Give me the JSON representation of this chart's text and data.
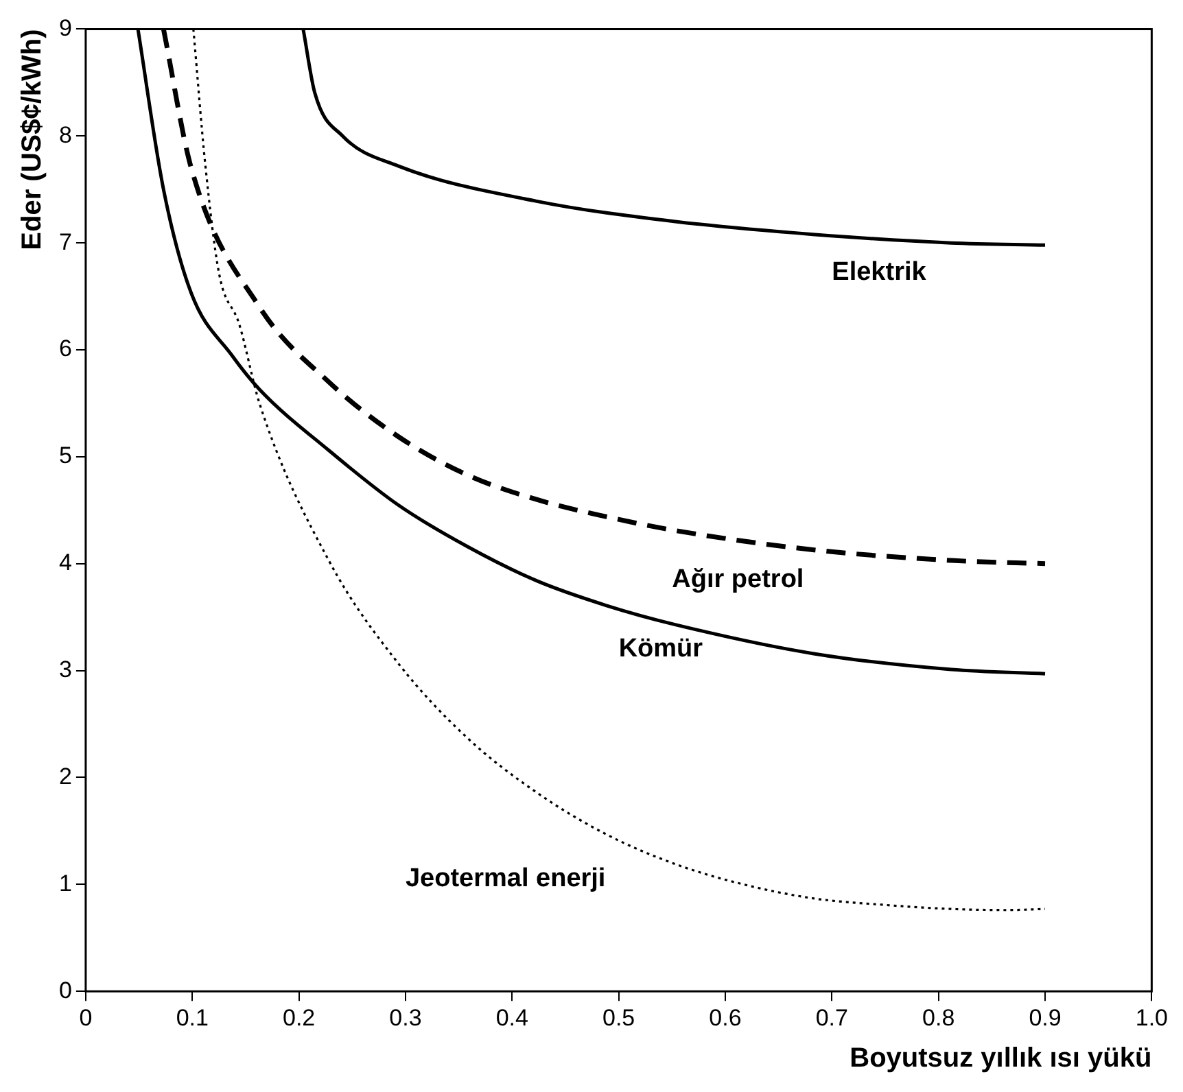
{
  "chart_data": {
    "type": "line",
    "xlabel": "Boyutsuz yıllık ısı yükü",
    "ylabel": "Eder (US$¢/kWh)",
    "xlim": [
      0,
      1
    ],
    "xticks": [
      0,
      0.1,
      0.2,
      0.3,
      0.4,
      0.5,
      0.6,
      0.7,
      0.8,
      0.9,
      {
        "value": 1,
        "label": "1.0"
      }
    ],
    "ylim": [
      0,
      9
    ],
    "yticks": [
      0,
      1,
      2,
      3,
      4,
      5,
      6,
      7,
      8,
      9
    ],
    "grid": false,
    "legend": false,
    "marker": "none",
    "series": [
      {
        "name": "Elektrik",
        "color": "#000000",
        "line_style": "solid",
        "x": [
          0.204,
          0.215,
          0.241,
          0.293,
          0.423,
          0.553,
          0.682,
          0.812,
          0.9
        ],
        "values": [
          9,
          8.4,
          8.0,
          7.72,
          7.39,
          7.2,
          7.08,
          7.0,
          6.98
        ]
      },
      {
        "name": "Ağır petrol",
        "color": "#000000",
        "line_style": "dashed",
        "x": [
          0.073,
          0.099,
          0.163,
          0.228,
          0.293,
          0.358,
          0.423,
          0.488,
          0.553,
          0.682,
          0.812,
          0.9
        ],
        "values": [
          9,
          7.7,
          6.4,
          5.7,
          5.19,
          4.83,
          4.6,
          4.44,
          4.31,
          4.13,
          4.03,
          4.0
        ]
      },
      {
        "name": "Kömür",
        "color": "#000000",
        "line_style": "solid",
        "x": [
          0.049,
          0.073,
          0.099,
          0.137,
          0.163,
          0.228,
          0.293,
          0.358,
          0.423,
          0.488,
          0.553,
          0.682,
          0.812,
          0.9
        ],
        "values": [
          9,
          7.5,
          6.53,
          5.95,
          5.63,
          5.06,
          4.55,
          4.16,
          3.84,
          3.61,
          3.43,
          3.16,
          3.01,
          2.97
        ]
      },
      {
        "name": "Jeotermal enerji",
        "color": "#000000",
        "line_style": "dotted",
        "x": [
          0.101,
          0.112,
          0.125,
          0.144,
          0.163,
          0.228,
          0.293,
          0.358,
          0.423,
          0.488,
          0.553,
          0.617,
          0.682,
          0.747,
          0.812,
          0.864,
          0.9
        ],
        "values": [
          9,
          7.75,
          6.72,
          6.24,
          5.5,
          4.03,
          3.07,
          2.37,
          1.86,
          1.47,
          1.19,
          1.0,
          0.87,
          0.81,
          0.77,
          0.76,
          0.77
        ]
      }
    ]
  }
}
